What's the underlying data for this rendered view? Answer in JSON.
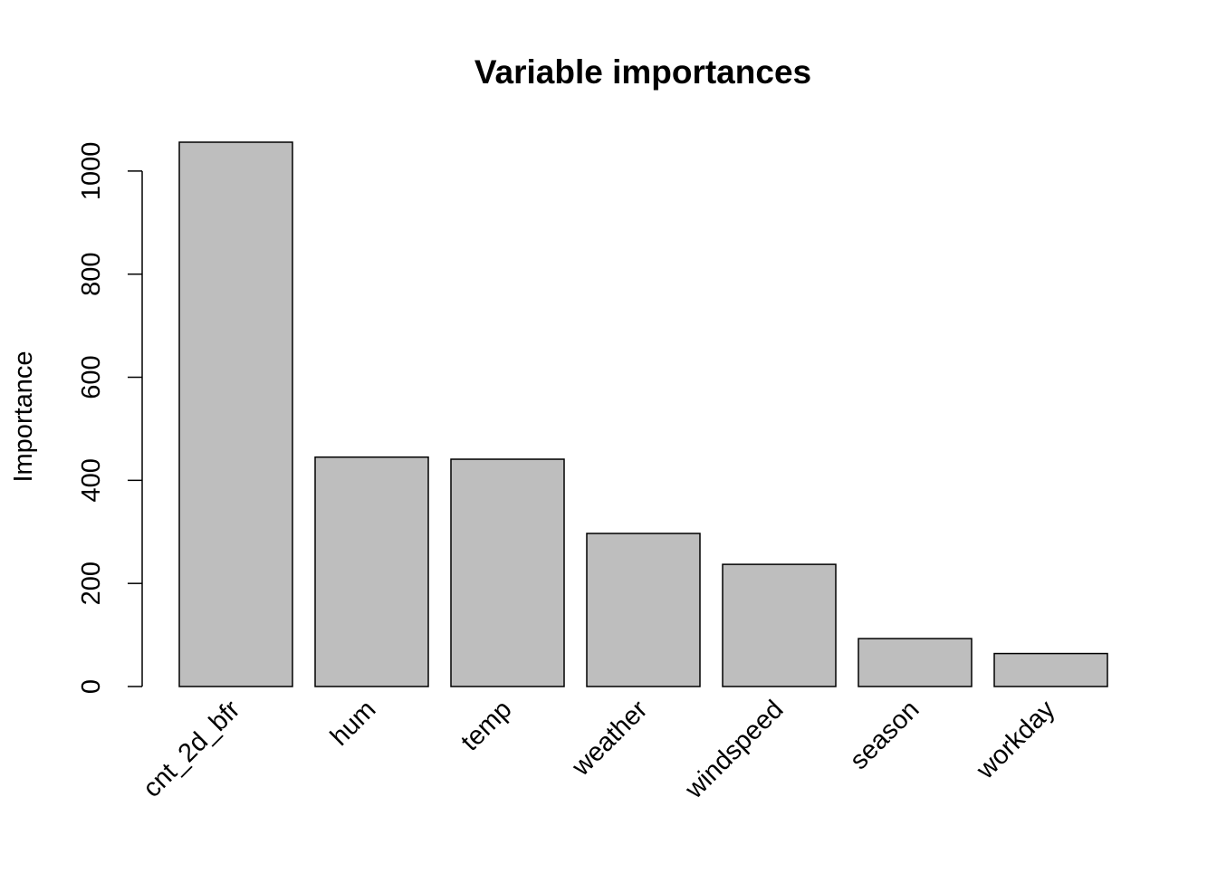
{
  "chart_data": {
    "type": "bar",
    "title": "Variable importances",
    "xlabel": "",
    "ylabel": "Importance",
    "categories": [
      "cnt_2d_bfr",
      "hum",
      "temp",
      "weather",
      "windspeed",
      "season",
      "workday"
    ],
    "values": [
      1056,
      445,
      441,
      297,
      237,
      93,
      64
    ],
    "yticks": [
      0,
      200,
      400,
      600,
      800,
      1000
    ],
    "ylim": [
      0,
      1056
    ],
    "grid": false,
    "bar_color": "#bebebe",
    "bar_edge_color": "#000000"
  }
}
